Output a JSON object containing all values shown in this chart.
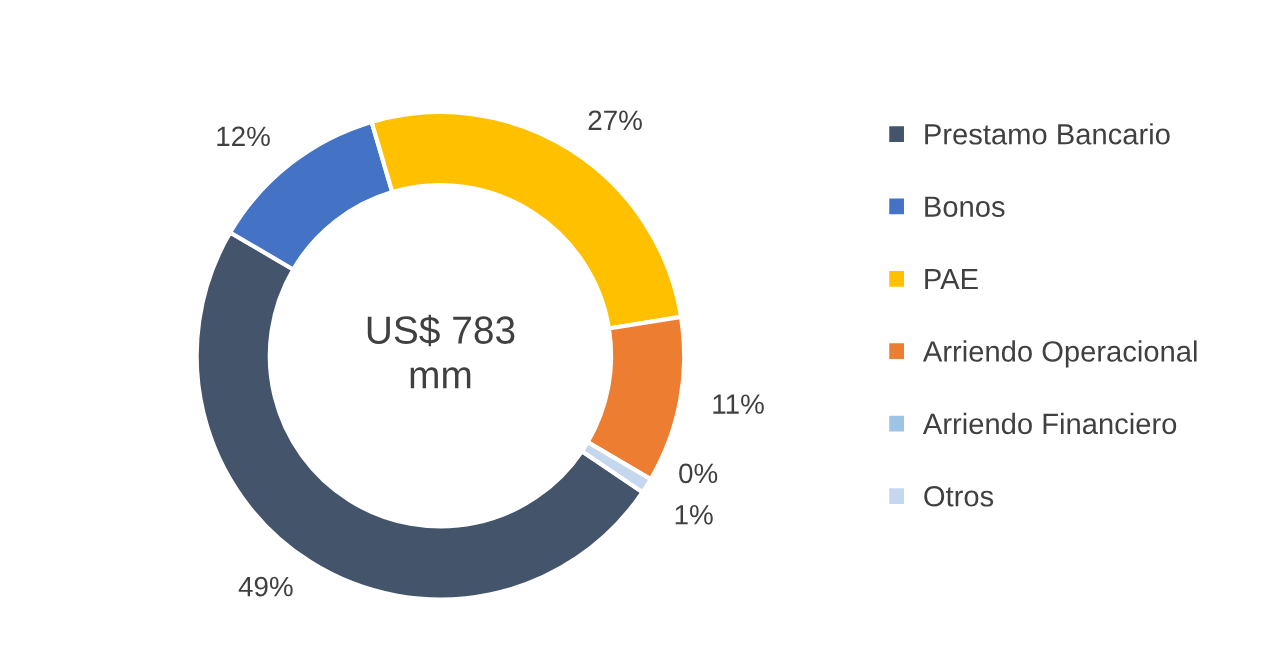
{
  "chart_data": {
    "type": "donut",
    "categories": [
      "Prestamo Bancario",
      "Bonos",
      "PAE",
      "Arriendo Operacional",
      "Arriendo Financiero",
      "Otros"
    ],
    "values": [
      49,
      12,
      27,
      11,
      0,
      1
    ],
    "colors": [
      "#44546a",
      "#4472c4",
      "#ffc000",
      "#ed7d31",
      "#9dc3e6",
      "#c5d7ee"
    ],
    "value_labels": [
      "49%",
      "12%",
      "27%",
      "11%",
      "0%",
      "1%"
    ],
    "annotations": [
      "US$ 783\nmm"
    ],
    "legend": "right"
  }
}
